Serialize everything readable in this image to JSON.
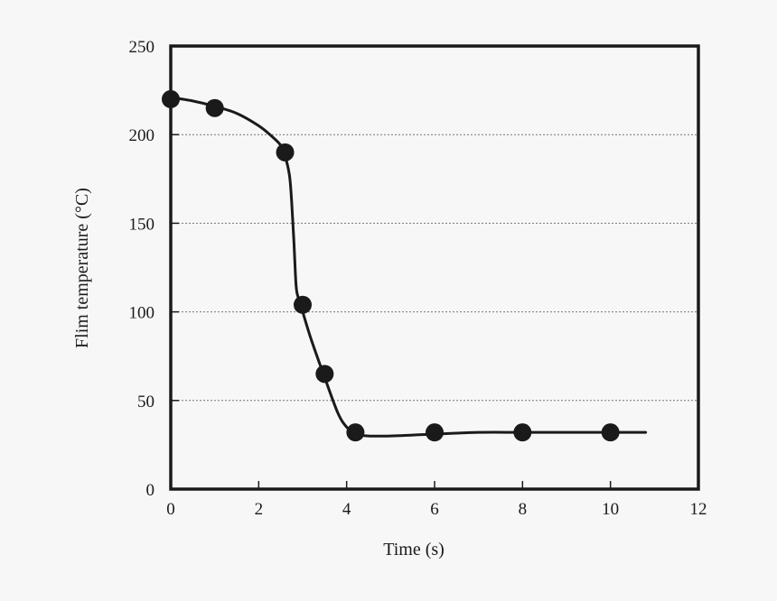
{
  "chart_data": {
    "type": "line",
    "xlabel": "Time (s)",
    "ylabel": "Flim temperature (°C)",
    "xlim": [
      0,
      12
    ],
    "ylim": [
      0,
      250
    ],
    "x_ticks": [
      0,
      2,
      4,
      6,
      8,
      10,
      12
    ],
    "y_ticks": [
      0,
      50,
      100,
      150,
      200,
      250
    ],
    "grid": "horizontal dotted",
    "series": [
      {
        "kind": "markers",
        "x": [
          0,
          1,
          2.6,
          3,
          3.5,
          4.2,
          6,
          8,
          10
        ],
        "y": [
          220,
          215,
          190,
          104,
          65,
          32,
          32,
          32,
          32
        ]
      },
      {
        "kind": "smooth-curve",
        "x": [
          0,
          0.5,
          1,
          1.5,
          2,
          2.3,
          2.5,
          2.6,
          2.7,
          2.75,
          2.8,
          2.85,
          2.9,
          3,
          3.2,
          3.5,
          3.8,
          4,
          4.2,
          4.5,
          5,
          5.5,
          6,
          7,
          8,
          9,
          10,
          10.8
        ],
        "y": [
          221,
          219,
          216,
          212,
          205,
          199,
          194,
          188,
          177,
          162,
          140,
          115,
          108,
          100,
          84,
          63,
          43,
          35,
          31,
          30,
          30,
          30.5,
          31,
          32,
          32,
          32,
          32,
          32
        ]
      }
    ],
    "colors": {
      "line": "#1a1a1a",
      "marker": "#1a1a1a",
      "grid": "#777777",
      "frame": "#1a1a1a"
    }
  }
}
